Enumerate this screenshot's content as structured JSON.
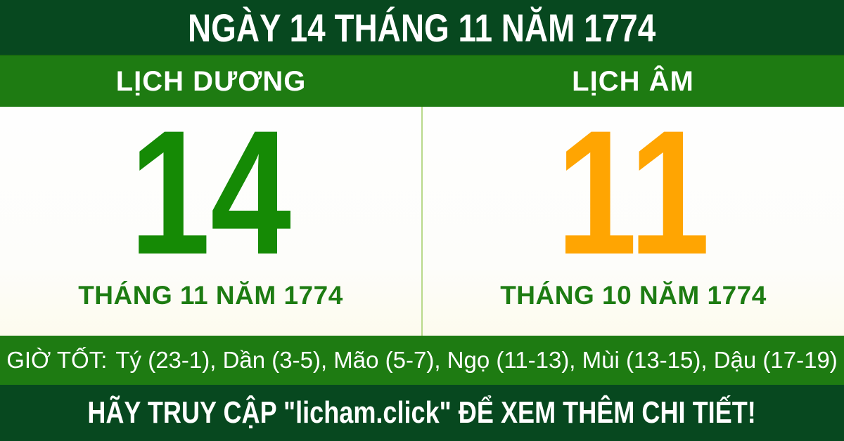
{
  "colors": {
    "dark-green": "#07481f",
    "medium-green": "#1e7b12",
    "day-green": "#158a05",
    "day-orange": "#ffa502",
    "month-green": "#1d7c12",
    "divider-green": "#b9d98b",
    "text-white": "#ffffff",
    "panel-bg": "#fdfdfa"
  },
  "header": {
    "title": "NGÀY 14 THÁNG 11 NĂM 1774"
  },
  "calendar": {
    "solar": {
      "label": "LỊCH DƯƠNG",
      "day": "14",
      "month_year": "THÁNG 11 NĂM 1774"
    },
    "lunar": {
      "label": "LỊCH ÂM",
      "day": "11",
      "month_year": "THÁNG 10 NĂM 1774"
    }
  },
  "good_hours": {
    "label": "GIỜ TỐT:",
    "list": "Tý (23-1), Dần (3-5), Mão (5-7), Ngọ (11-13), Mùi (13-15), Dậu (17-19)"
  },
  "footer": {
    "text": "HÃY TRUY CẬP \"licham.click\" ĐỂ XEM THÊM CHI TIẾT!"
  }
}
